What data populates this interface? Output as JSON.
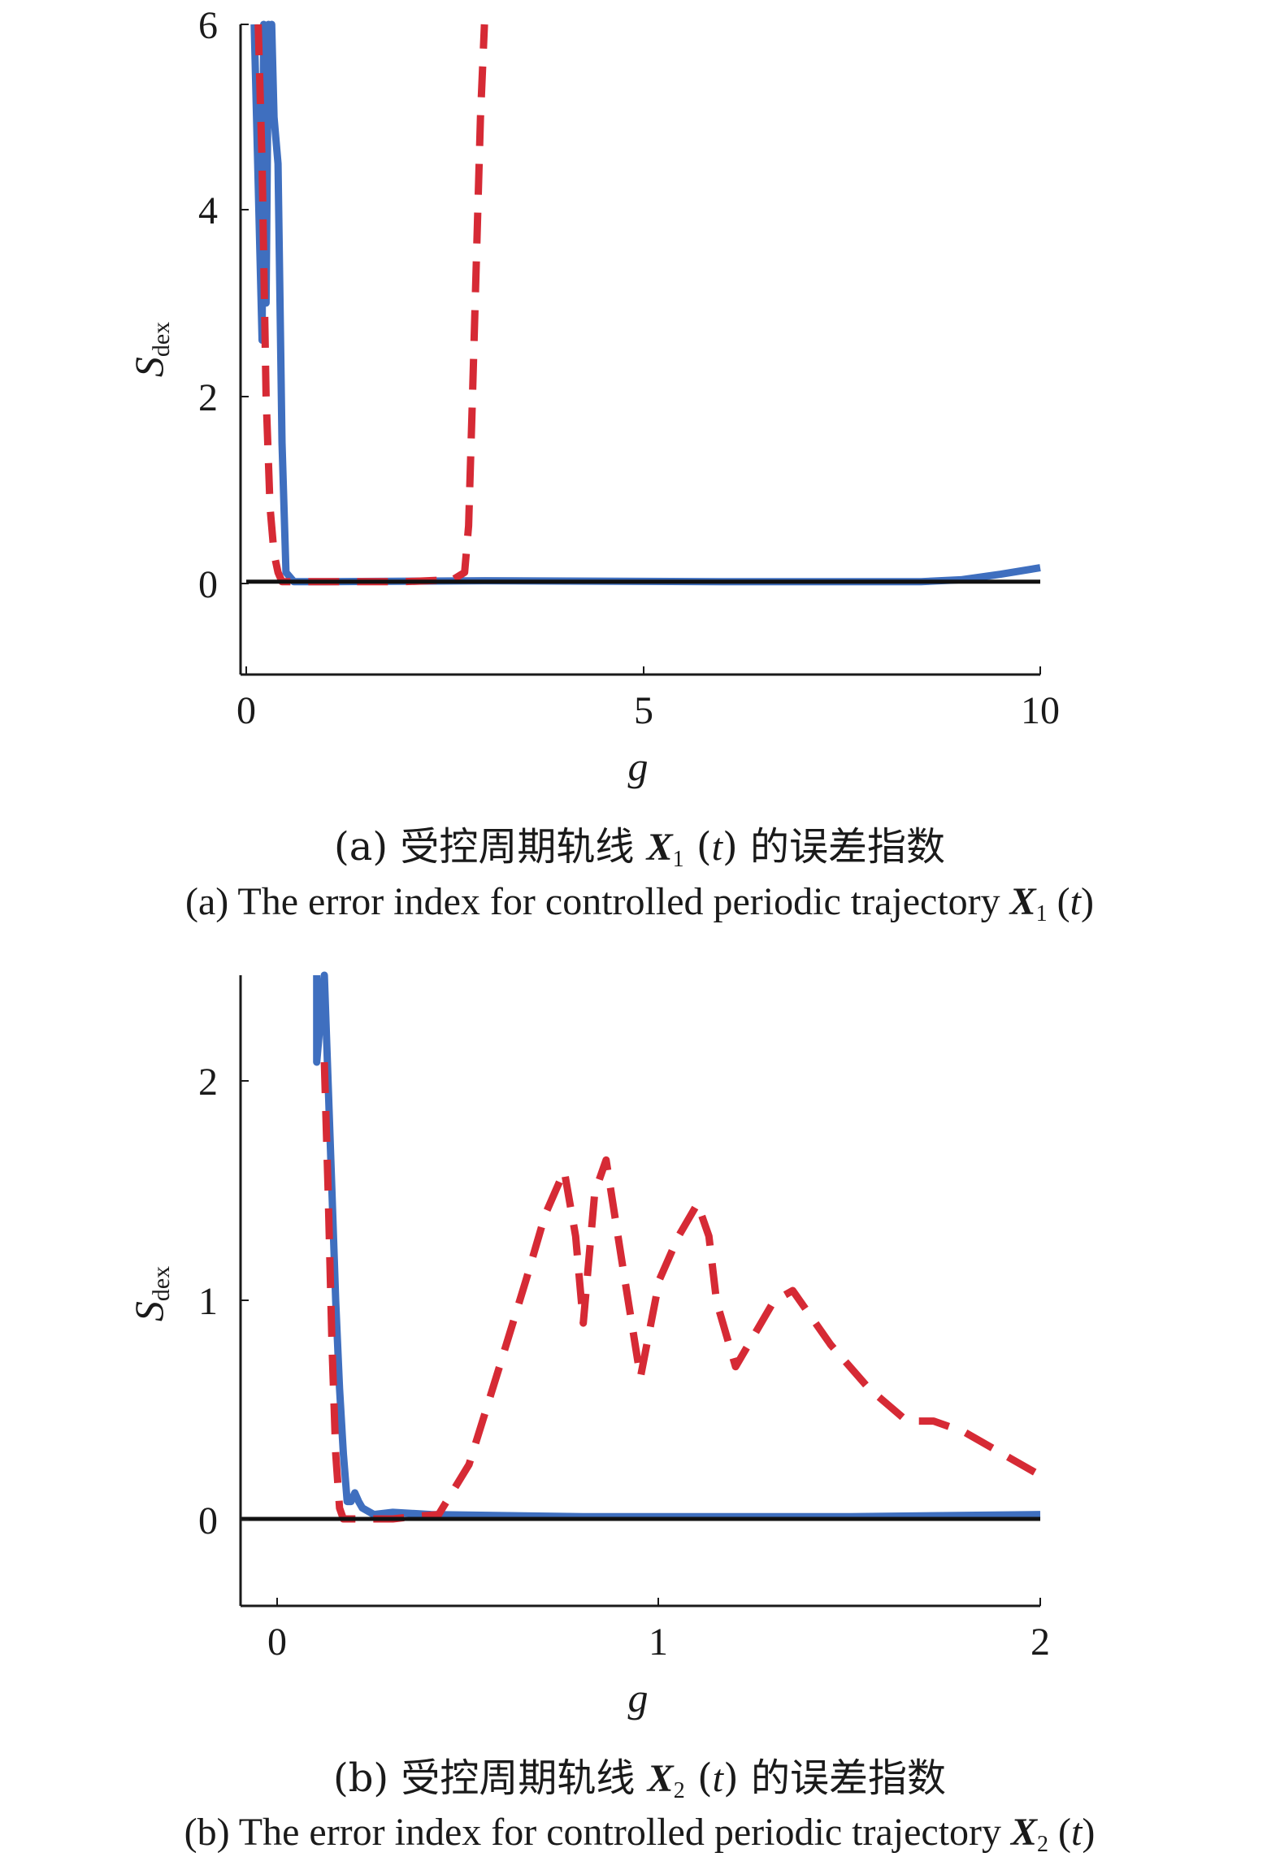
{
  "colors": {
    "solid": "#3f6fbf",
    "dashed": "#d62a35",
    "zero_line": "#111111",
    "axis": "#1a1a1a"
  },
  "chart_data": [
    {
      "type": "line",
      "xlabel": "g",
      "ylabel": "S",
      "ylabel_sub": "dex",
      "xlim": [
        0,
        10
      ],
      "ylim": [
        -1,
        6
      ],
      "xticks": [
        "0",
        "5",
        "10"
      ],
      "yticks": [
        "0",
        "2",
        "4",
        "6"
      ],
      "caption_cn": {
        "prefix": "(a) 受控周期轨线 ",
        "var": "X",
        "sub": "1",
        "arg": " (",
        "t": "t",
        "suffix": ") 的误差指数"
      },
      "caption_en": {
        "prefix": "(a) The error index for controlled periodic trajectory ",
        "var": "X",
        "sub": "1",
        "arg": " (",
        "t": "t",
        "close": ")"
      },
      "series": [
        {
          "style": "solid",
          "x": [
            0.1,
            0.2,
            0.22,
            0.25,
            0.28,
            0.3,
            0.32,
            0.35,
            0.4,
            0.45,
            0.5,
            0.6,
            1,
            3,
            6,
            8.5,
            9,
            9.5,
            10
          ],
          "y": [
            6,
            2.6,
            6,
            3,
            6,
            5.2,
            6,
            5,
            4.5,
            1.5,
            0.1,
            0,
            0,
            0.01,
            0,
            0,
            0.02,
            0.08,
            0.15
          ]
        },
        {
          "style": "dashed",
          "x": [
            0.15,
            0.2,
            0.25,
            0.3,
            0.35,
            0.4,
            0.45,
            0.5,
            1,
            2,
            2.6,
            2.75,
            2.8,
            2.85,
            2.9,
            2.95,
            3
          ],
          "y": [
            6,
            4.5,
            2,
            0.8,
            0.3,
            0.1,
            0,
            0,
            0,
            0,
            0.02,
            0.1,
            0.6,
            2,
            3.5,
            5,
            6
          ]
        },
        {
          "style": "zero",
          "x": [
            0,
            10
          ],
          "y": [
            0,
            0
          ]
        }
      ]
    },
    {
      "type": "line",
      "xlabel": "g",
      "ylabel": "S",
      "ylabel_sub": "dex",
      "xlim": [
        -0.1,
        2
      ],
      "ylim": [
        -0.4,
        2.5
      ],
      "xticks": [
        "0",
        "1",
        "2"
      ],
      "yticks": [
        "0",
        "1",
        "2"
      ],
      "caption_cn": {
        "prefix": "(b) 受控周期轨线 ",
        "var": "X",
        "sub": "2",
        "arg": " (",
        "t": "t",
        "suffix": ") 的误差指数"
      },
      "caption_en": {
        "prefix": "(b) The error index for controlled periodic trajectory ",
        "var": "X",
        "sub": "2",
        "arg": " (",
        "t": "t",
        "close": ")"
      },
      "series": [
        {
          "style": "solid",
          "x": [
            0.1,
            0.1,
            0.12,
            0.13,
            0.14,
            0.15,
            0.16,
            0.17,
            0.18,
            0.19,
            0.2,
            0.21,
            0.22,
            0.25,
            0.3,
            0.4,
            0.8,
            1.5,
            2
          ],
          "y": [
            2.5,
            2.1,
            2.5,
            2.0,
            1.5,
            1.0,
            0.6,
            0.3,
            0.08,
            0.08,
            0.12,
            0.08,
            0.05,
            0.02,
            0.03,
            0.02,
            0.01,
            0.01,
            0.02
          ]
        },
        {
          "style": "dashed",
          "x": [
            0.12,
            0.13,
            0.14,
            0.15,
            0.16,
            0.17,
            0.18,
            0.2,
            0.25,
            0.3,
            0.35,
            0.42,
            0.5,
            0.58,
            0.65,
            0.7,
            0.75,
            0.78,
            0.8,
            0.83,
            0.86,
            0.9,
            0.95,
            1.0,
            1.05,
            1.1,
            1.13,
            1.15,
            1.2,
            1.25,
            1.3,
            1.35,
            1.45,
            1.55,
            1.65,
            1.72,
            1.8,
            1.9,
            2.0
          ],
          "y": [
            2.1,
            1.5,
            0.8,
            0.3,
            0.05,
            0.0,
            0.0,
            0.0,
            0.0,
            0.0,
            0.01,
            0.02,
            0.25,
            0.7,
            1.1,
            1.4,
            1.6,
            1.3,
            0.9,
            1.5,
            1.65,
            1.2,
            0.65,
            1.1,
            1.3,
            1.45,
            1.3,
            1.0,
            0.7,
            0.85,
            1.0,
            1.05,
            0.8,
            0.6,
            0.45,
            0.45,
            0.4,
            0.3,
            0.2
          ]
        },
        {
          "style": "zero",
          "x": [
            -0.1,
            2
          ],
          "y": [
            0,
            0
          ]
        }
      ]
    }
  ]
}
